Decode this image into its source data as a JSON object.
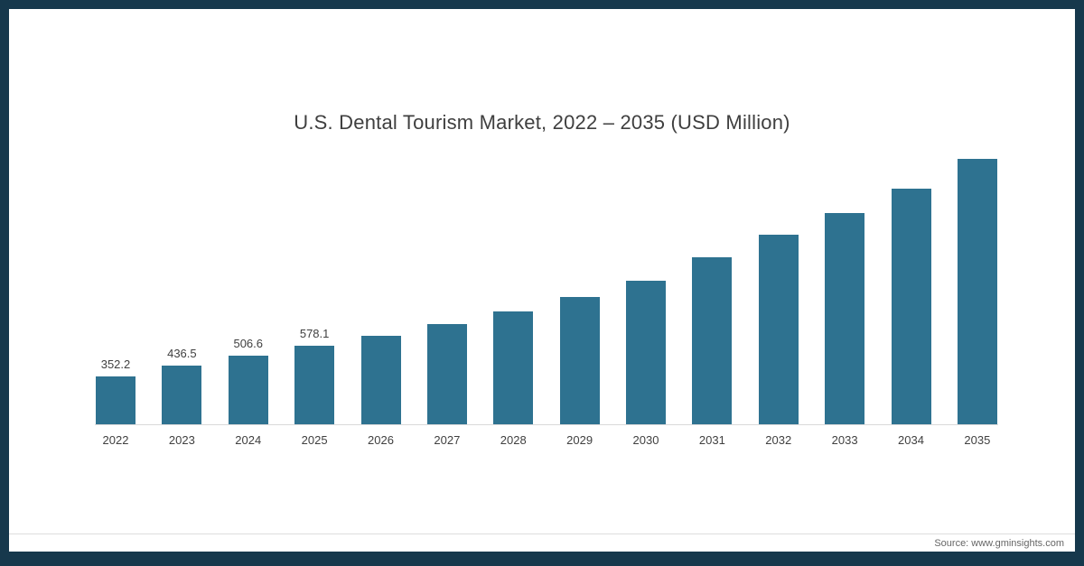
{
  "frame": {
    "border_color": "#16384c",
    "background_color": "#ffffff"
  },
  "chart": {
    "bar_color": "#2e7290",
    "source": "Source: www.gminsights.com"
  },
  "chart_data": {
    "type": "bar",
    "title": "U.S. Dental Tourism Market, 2022 – 2035 (USD Million)",
    "categories": [
      "2022",
      "2023",
      "2024",
      "2025",
      "2026",
      "2027",
      "2028",
      "2029",
      "2030",
      "2031",
      "2032",
      "2033",
      "2034",
      "2035"
    ],
    "values": [
      352.2,
      436.5,
      506.6,
      578.1,
      655,
      740,
      835,
      940,
      1060,
      1230,
      1400,
      1560,
      1740,
      1960
    ],
    "bar_labels": [
      "352.2",
      "436.5",
      "506.6",
      "578.1",
      "",
      "",
      "",
      "",
      "",
      "",
      "",
      "",
      "",
      ""
    ],
    "xlabel": "",
    "ylabel": "",
    "ylim": [
      0,
      2000
    ],
    "grid": false,
    "legend": false,
    "legend_position": "none",
    "note": "Only the first four bars display data labels; remaining values estimated from bar heights."
  }
}
